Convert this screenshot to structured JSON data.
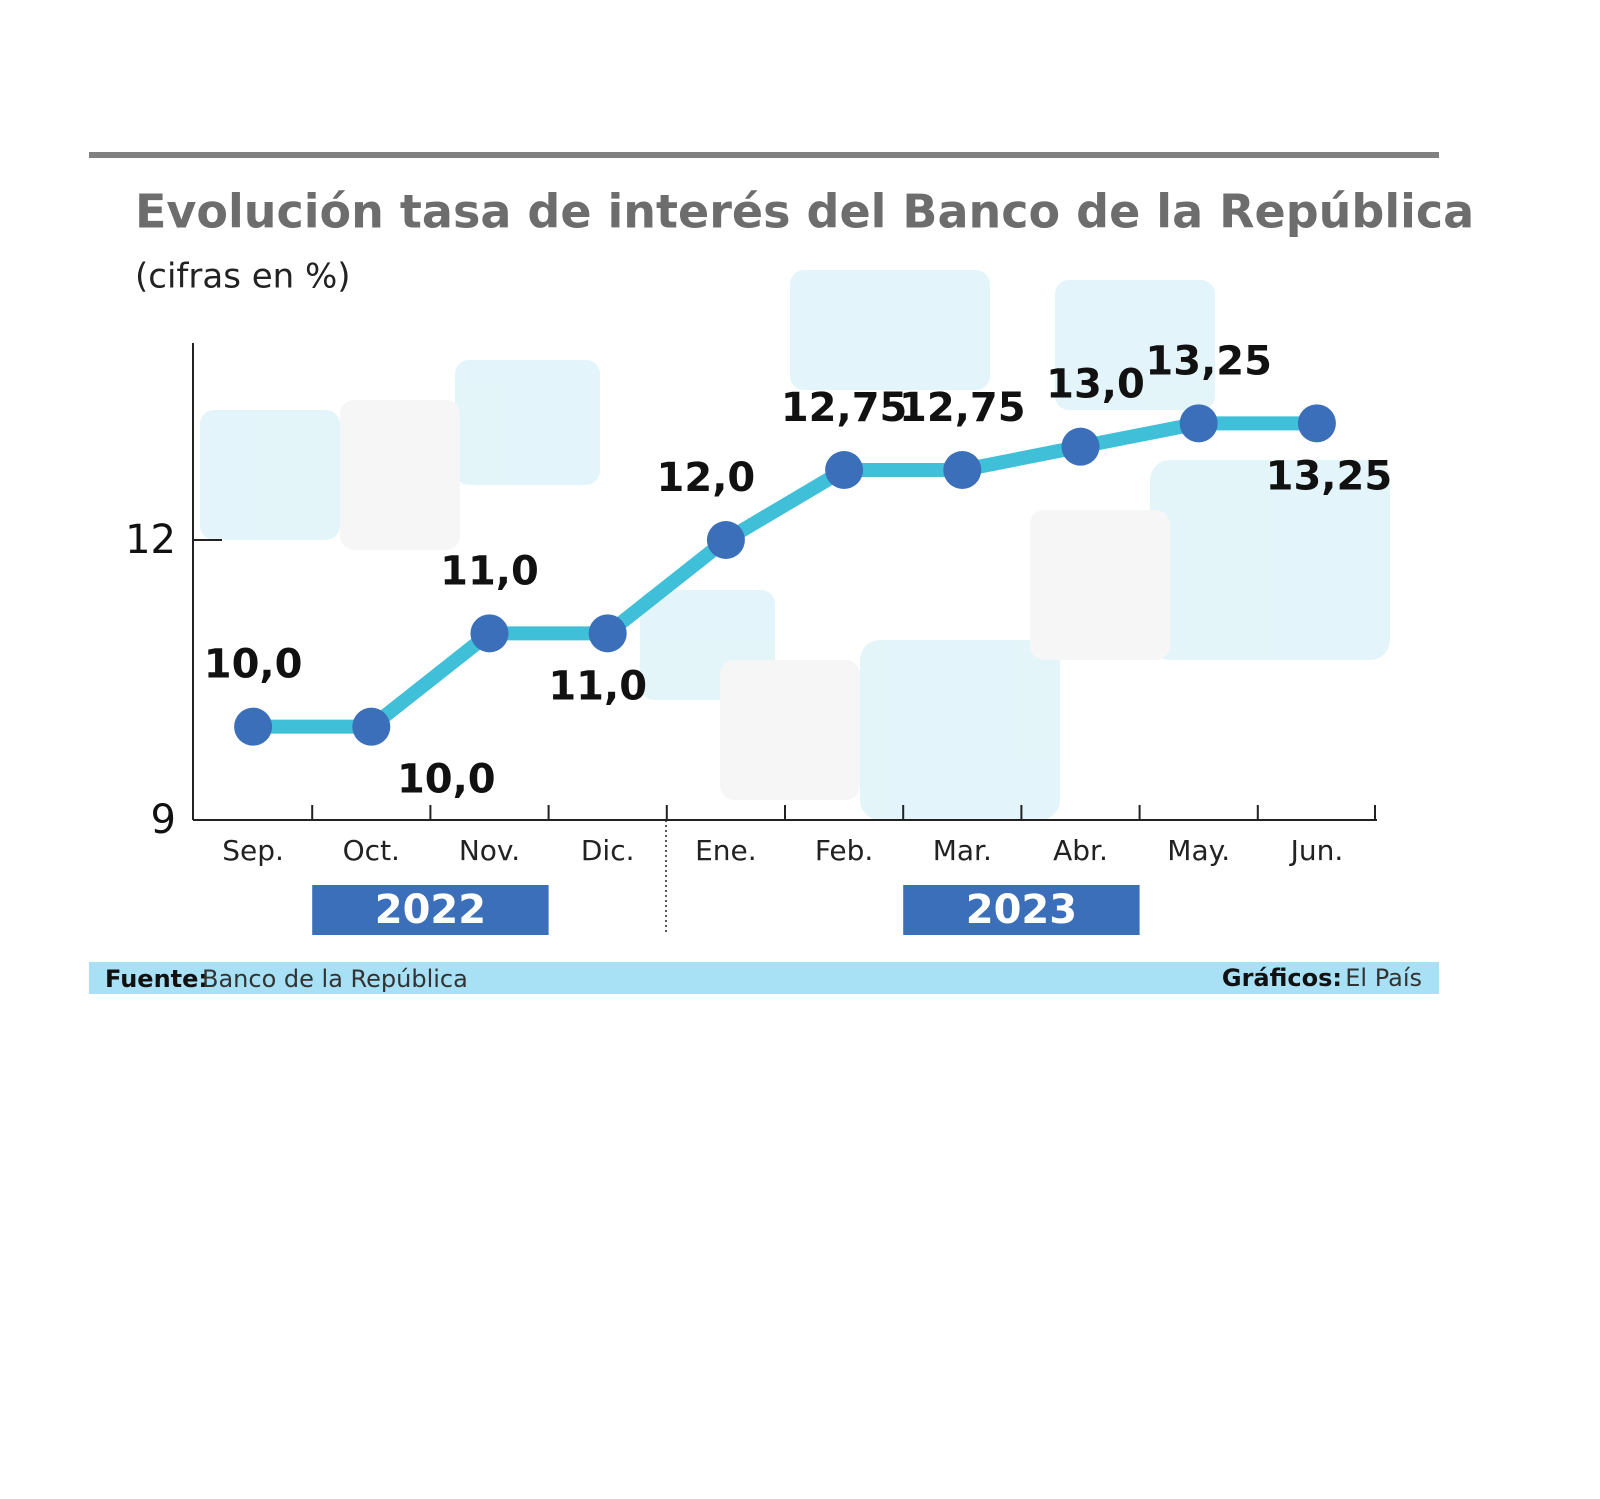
{
  "chart_data": {
    "type": "line",
    "title": "Evolución tasa de interés del  Banco de la República",
    "subtitle": "(cifras en %)",
    "categories": [
      "Sep.",
      "Oct.",
      "Nov.",
      "Dic.",
      "Ene.",
      "Feb.",
      "Mar.",
      "Abr.",
      "May.",
      "Jun."
    ],
    "series": [
      {
        "color": "#3fbfd8",
        "marker_color": "#3b6fba",
        "values": [
          10,
          10,
          11,
          11,
          12,
          12.75,
          12.75,
          13,
          13.25,
          13.25
        ],
        "value_labels": [
          "10,0",
          "10,0",
          "11,0",
          "11,0",
          "12,0",
          "12,75",
          "12,75",
          "13,0",
          "13,25",
          "13,25"
        ]
      }
    ],
    "ylim": [
      9,
      14.1
    ],
    "yticks": [
      9,
      12
    ],
    "year_labels": [
      "2022",
      "2023"
    ],
    "source_label": "Fuente:",
    "source": "Banco de la República",
    "credit_label": "Gráficos:",
    "credit": "El País"
  }
}
